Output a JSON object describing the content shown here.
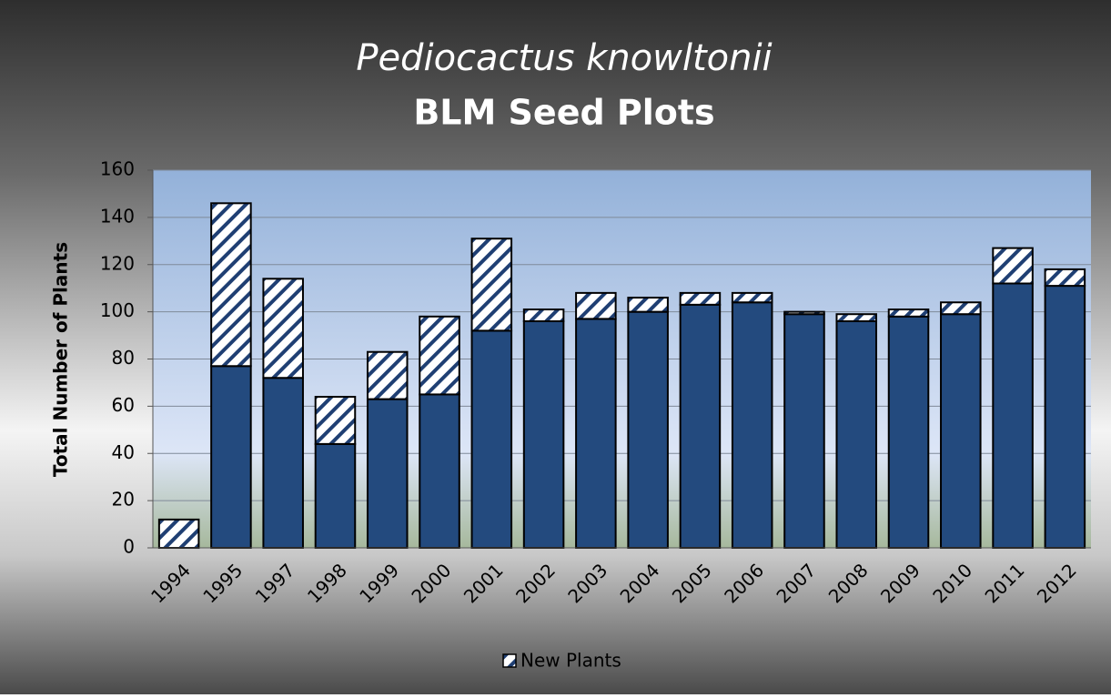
{
  "chart_data": {
    "type": "stacked-bar",
    "title": "Pediocactus knowltonii",
    "subtitle": "BLM Seed Plots",
    "y_label": "Total Number of Plants",
    "categories": [
      "1994",
      "1995",
      "1997",
      "1998",
      "1999",
      "2000",
      "2001",
      "2002",
      "2003",
      "2004",
      "2005",
      "2006",
      "2007",
      "2008",
      "2009",
      "2010",
      "2011",
      "2012"
    ],
    "series": [
      {
        "color": "#234a7e",
        "values": [
          0,
          77,
          72,
          44,
          63,
          65,
          92,
          96,
          97,
          100,
          103,
          104,
          99,
          96,
          98,
          99,
          112,
          111
        ]
      },
      {
        "name": "New Plants",
        "color": "#1f3f73",
        "pattern": "hatch",
        "values": [
          12,
          69,
          42,
          20,
          20,
          33,
          39,
          5,
          11,
          6,
          5,
          4,
          1,
          3,
          3,
          5,
          15,
          7
        ]
      }
    ],
    "ylim": [
      0,
      160
    ],
    "yticks": [
      0,
      20,
      40,
      60,
      80,
      100,
      120,
      140,
      160
    ],
    "grid": true,
    "legend": "bottom"
  }
}
